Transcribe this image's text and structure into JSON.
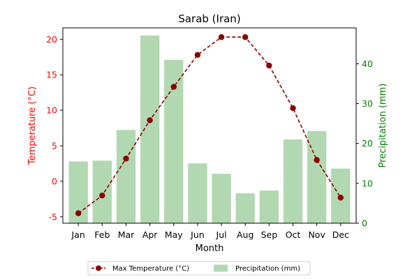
{
  "chart_data": {
    "type": "bar+line",
    "title": "Sarab (Iran)",
    "xlabel": "Month",
    "ylabel_left": "Temperature (°C)",
    "ylabel_right": "Precipitation (mm)",
    "categories": [
      "Jan",
      "Feb",
      "Mar",
      "Apr",
      "May",
      "Jun",
      "Jul",
      "Aug",
      "Sep",
      "Oct",
      "Nov",
      "Dec"
    ],
    "ylim_left": [
      -5.9,
      21.6
    ],
    "ylim_right": [
      0,
      49
    ],
    "yticks_left": [
      -5,
      0,
      5,
      10,
      15,
      20
    ],
    "yticks_right": [
      0,
      10,
      20,
      30,
      40
    ],
    "grid": false,
    "legend_position": "bottom-center",
    "series": [
      {
        "name": "Max Temperature (°C)",
        "type": "line",
        "axis": "left",
        "color": "#8b0000",
        "marker": "circle",
        "linestyle": "dashed",
        "values": [
          -4.5,
          -2.0,
          3.2,
          8.6,
          13.3,
          17.8,
          20.3,
          20.3,
          16.3,
          10.3,
          3.0,
          -2.3
        ]
      },
      {
        "name": "Precipitation (mm)",
        "type": "bar",
        "axis": "right",
        "color": "#b2d8b2",
        "values": [
          15.5,
          15.7,
          23.4,
          47.1,
          41.0,
          15.0,
          12.4,
          7.5,
          8.2,
          21.0,
          23.1,
          13.7
        ]
      }
    ],
    "colors": {
      "left_axis": "#ff0000",
      "right_axis": "#008000",
      "line": "#8b0000",
      "bars": "#b2d8b2"
    }
  }
}
